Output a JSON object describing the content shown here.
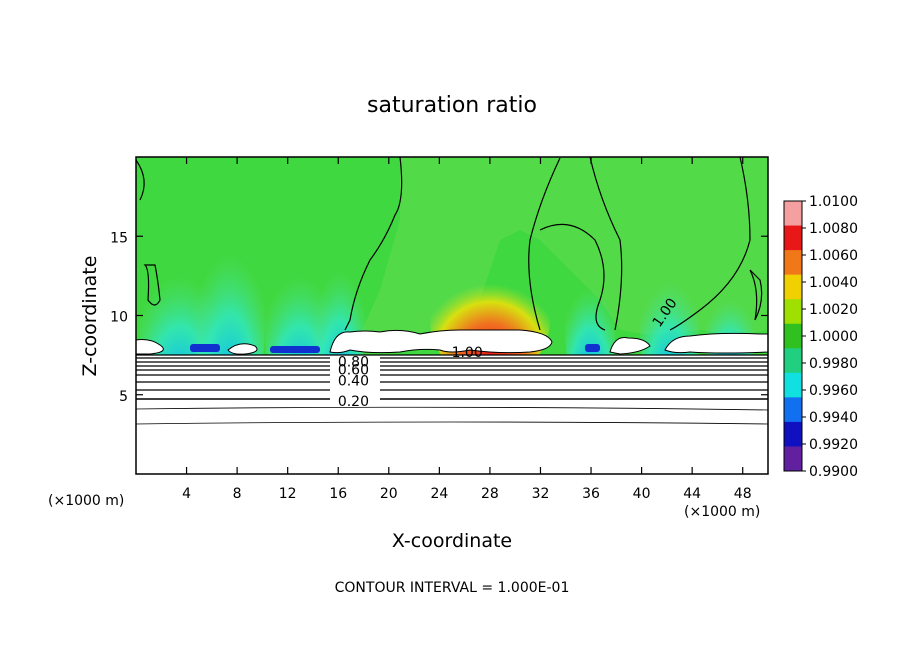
{
  "chart_data": {
    "type": "heatmap",
    "title": "saturation ratio",
    "xlabel": "X-coordinate",
    "ylabel": "Z-coordinate",
    "x_unit_left": "(×1000 m)",
    "x_unit_right": "(×1000 m)",
    "xlim": [
      0,
      50
    ],
    "ylim": [
      0,
      20
    ],
    "x_ticks": [
      "4",
      "8",
      "12",
      "16",
      "20",
      "24",
      "28",
      "32",
      "36",
      "40",
      "44",
      "48"
    ],
    "x_tick_values": [
      4,
      8,
      12,
      16,
      20,
      24,
      28,
      32,
      36,
      40,
      44,
      48
    ],
    "y_ticks": [
      "5",
      "10",
      "15"
    ],
    "y_tick_values": [
      5,
      10,
      15
    ],
    "contour_labels": [
      {
        "text": "0.80",
        "x": 17.2,
        "y": 7.1
      },
      {
        "text": "0.60",
        "x": 17.2,
        "y": 6.6
      },
      {
        "text": "0.40",
        "x": 17.2,
        "y": 5.9
      },
      {
        "text": "0.20",
        "x": 17.2,
        "y": 4.6
      },
      {
        "text": "1.00",
        "x": 26.2,
        "y": 7.7
      },
      {
        "text": "1.00",
        "x": 41.8,
        "y": 10.2
      }
    ],
    "contour_levels_below_cloud": [
      0.1,
      0.2,
      0.3,
      0.4,
      0.5,
      0.6,
      0.7,
      0.8,
      0.9
    ],
    "footer": "CONTOUR INTERVAL = 1.000E-01",
    "colorbar": {
      "levels": [
        "1.0100",
        "1.0080",
        "1.0060",
        "1.0040",
        "1.0020",
        "1.0000",
        "0.9980",
        "0.9960",
        "0.9940",
        "0.9920",
        "0.9900"
      ],
      "colors": [
        "#f5a0a0",
        "#e81818",
        "#f07818",
        "#f0d000",
        "#a0e000",
        "#30c020",
        "#20d080",
        "#10e0e0",
        "#1070f0",
        "#1010c0",
        "#6020a0"
      ]
    },
    "colors": {
      "background_green": "#40d840",
      "mid_green": "#68e060",
      "cyan": "#30e8c8",
      "blue": "#1040e0",
      "red": "#f02010",
      "orange": "#f08020"
    }
  }
}
